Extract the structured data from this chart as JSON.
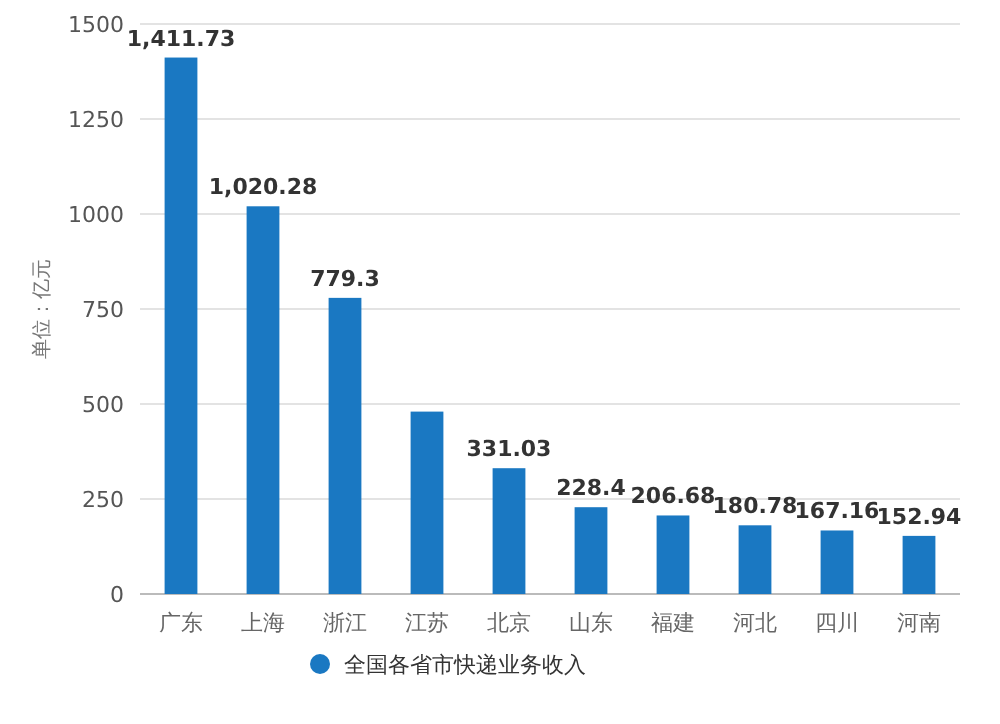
{
  "chart_data": {
    "type": "bar",
    "ylabel": "单位：亿元",
    "categories": [
      "广东",
      "上海",
      "浙江",
      "江苏",
      "北京",
      "山东",
      "福建",
      "河北",
      "四川",
      "河南"
    ],
    "series": [
      {
        "name": "全国各省市快递业务收入",
        "color": "#1a78c2",
        "values": [
          1411.73,
          1020.28,
          779.3,
          480,
          331.03,
          228.4,
          206.68,
          180.78,
          167.16,
          152.94
        ],
        "value_labels": [
          "1,411.73",
          "1,020.28",
          "779.3",
          null,
          "331.03",
          "228.4",
          "206.68",
          "180.78",
          "167.16",
          "152.94"
        ]
      }
    ],
    "ylim": [
      0,
      1500
    ],
    "yticks": [
      0,
      250,
      500,
      750,
      1000,
      1250,
      1500
    ],
    "grid": "y",
    "legend": "bottom"
  }
}
